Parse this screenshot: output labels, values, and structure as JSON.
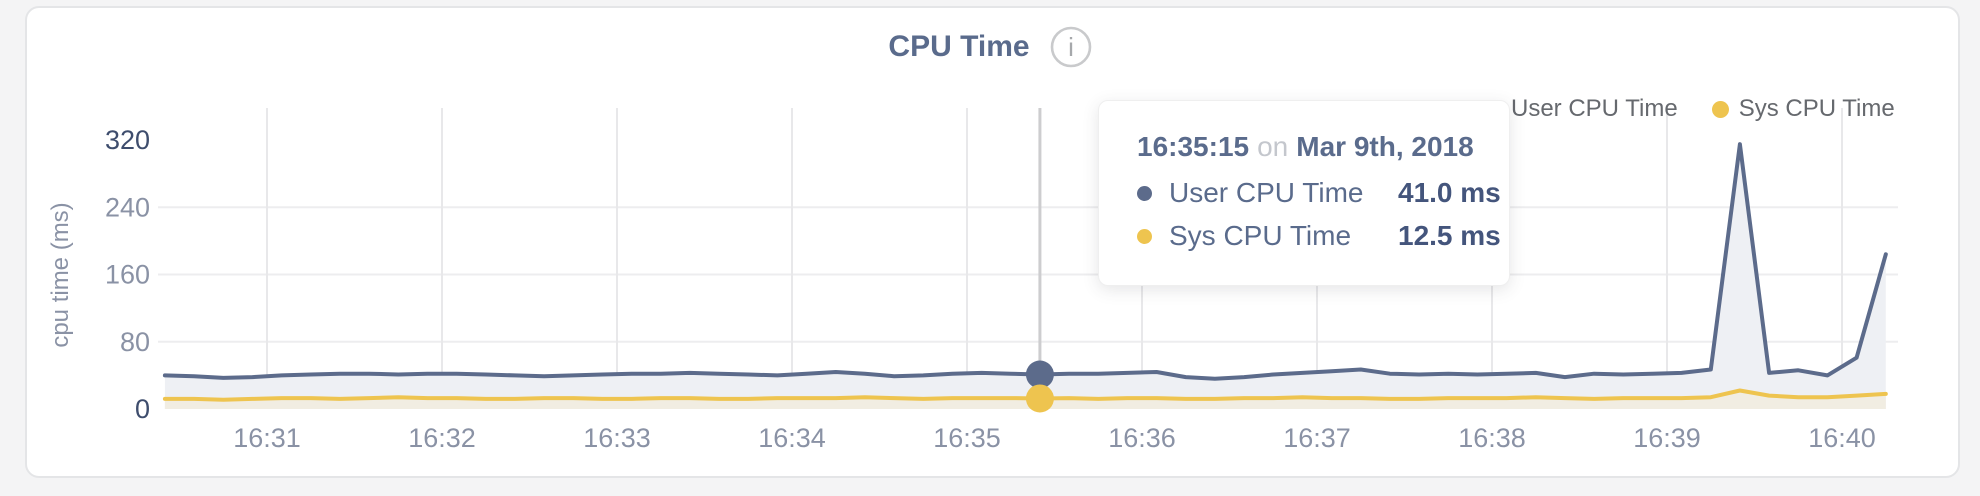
{
  "page": {
    "background": "#f4f4f5",
    "card_background": "#ffffff"
  },
  "header": {
    "title": "CPU Time",
    "info_icon": "i"
  },
  "legend": {
    "items": [
      {
        "label": "User CPU Time",
        "color": "#5c6b8b"
      },
      {
        "label": "Sys CPU Time",
        "color": "#eec44f"
      }
    ]
  },
  "tooltip": {
    "time": "16:35:15",
    "preposition": "on",
    "date": "Mar 9th, 2018",
    "rows": [
      {
        "label": "User CPU Time",
        "value": "41.0 ms",
        "color": "#5c6b8b"
      },
      {
        "label": "Sys CPU Time",
        "value": "12.5 ms",
        "color": "#eec44f"
      }
    ]
  },
  "chart_data": {
    "type": "line",
    "title": "CPU Time",
    "xlabel": "",
    "ylabel": "cpu time (ms)",
    "ylim": [
      0,
      320
    ],
    "yticks": [
      0,
      80,
      160,
      240,
      320
    ],
    "x_tick_labels": [
      "16:31",
      "16:32",
      "16:33",
      "16:34",
      "16:35",
      "16:36",
      "16:37",
      "16:38",
      "16:39",
      "16:40"
    ],
    "start_time": "16:30:25",
    "interval_seconds": 10,
    "grid": true,
    "legend_position": "top-right",
    "series": [
      {
        "name": "User CPU Time",
        "color": "#5c6b8b",
        "fill": "#eef0f4",
        "values": [
          40,
          39,
          37,
          38,
          40,
          41,
          42,
          42,
          41,
          42,
          42,
          41,
          40,
          39,
          40,
          41,
          42,
          42,
          43,
          42,
          41,
          40,
          42,
          44,
          42,
          39,
          40,
          42,
          43,
          42,
          41,
          42,
          42,
          43,
          44,
          38,
          36,
          38,
          41,
          43,
          45,
          47,
          42,
          41,
          42,
          41,
          42,
          43,
          38,
          42,
          41,
          42,
          43,
          47,
          315,
          43,
          46,
          40,
          61,
          184
        ]
      },
      {
        "name": "Sys CPU Time",
        "color": "#eec44f",
        "fill": "#f1ede2",
        "values": [
          12,
          12,
          11,
          12,
          13,
          13,
          12,
          13,
          14,
          13,
          13,
          12,
          12,
          13,
          13,
          12,
          12,
          13,
          13,
          12,
          12,
          13,
          13,
          13,
          14,
          13,
          12,
          13,
          13,
          13,
          12.5,
          13,
          12,
          13,
          13,
          12,
          12,
          13,
          13,
          14,
          13,
          13,
          12,
          12,
          13,
          13,
          13,
          14,
          13,
          12,
          13,
          13,
          13,
          14,
          22,
          16,
          14,
          14,
          16,
          18
        ]
      }
    ],
    "crosshair": {
      "index": 30,
      "time_label": "16:35:15",
      "user_value_ms": 41.0,
      "sys_value_ms": 12.5
    }
  }
}
